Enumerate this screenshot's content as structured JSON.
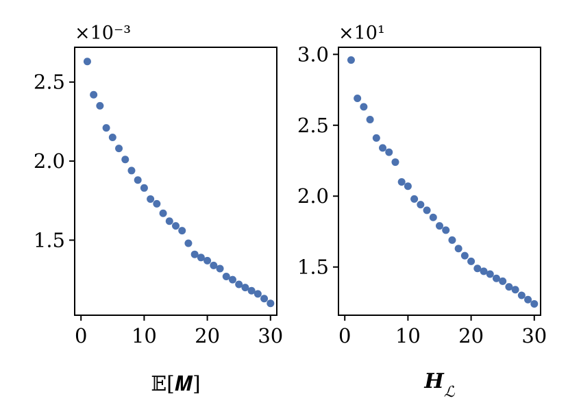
{
  "chart_data": [
    {
      "type": "scatter",
      "xlabel": "𝔼[𝑴]",
      "ylabel": "",
      "y_offset_label": "×10⁻³",
      "xlim": [
        -1,
        31
      ],
      "ylim": [
        1.025,
        2.72
      ],
      "xticks": [
        0,
        10,
        20,
        30
      ],
      "xtick_labels": [
        "0",
        "10",
        "20",
        "30"
      ],
      "yticks": [
        1.5,
        2.0,
        2.5
      ],
      "ytick_labels": [
        "1.5",
        "2.0",
        "2.5"
      ],
      "grid": false,
      "marker_color": "#4c72b0",
      "x": [
        1,
        2,
        3,
        4,
        5,
        6,
        7,
        8,
        9,
        10,
        11,
        12,
        13,
        14,
        15,
        16,
        17,
        18,
        19,
        20,
        21,
        22,
        23,
        24,
        25,
        26,
        27,
        28,
        29,
        30
      ],
      "y": [
        2.63,
        2.42,
        2.35,
        2.21,
        2.15,
        2.08,
        2.01,
        1.94,
        1.88,
        1.83,
        1.76,
        1.73,
        1.67,
        1.62,
        1.59,
        1.56,
        1.48,
        1.41,
        1.39,
        1.37,
        1.34,
        1.32,
        1.27,
        1.25,
        1.22,
        1.2,
        1.18,
        1.16,
        1.13,
        1.1
      ]
    },
    {
      "type": "scatter",
      "xlabel": "𝑯",
      "xlabel_sub": "ℒ",
      "ylabel": "",
      "y_offset_label": "×10¹",
      "xlim": [
        -1,
        31
      ],
      "ylim": [
        1.16,
        3.05
      ],
      "xticks": [
        0,
        10,
        20,
        30
      ],
      "xtick_labels": [
        "0",
        "10",
        "20",
        "30"
      ],
      "yticks": [
        1.5,
        2.0,
        2.5,
        3.0
      ],
      "ytick_labels": [
        "1.5",
        "2.0",
        "2.5",
        "3.0"
      ],
      "grid": false,
      "marker_color": "#4c72b0",
      "x": [
        1,
        2,
        3,
        4,
        5,
        6,
        7,
        8,
        9,
        10,
        11,
        12,
        13,
        14,
        15,
        16,
        17,
        18,
        19,
        20,
        21,
        22,
        23,
        24,
        25,
        26,
        27,
        28,
        29,
        30
      ],
      "y": [
        2.96,
        2.69,
        2.63,
        2.54,
        2.41,
        2.34,
        2.31,
        2.24,
        2.1,
        2.07,
        1.98,
        1.94,
        1.9,
        1.85,
        1.79,
        1.76,
        1.69,
        1.63,
        1.58,
        1.54,
        1.49,
        1.47,
        1.45,
        1.42,
        1.4,
        1.36,
        1.34,
        1.3,
        1.27,
        1.24
      ]
    }
  ]
}
